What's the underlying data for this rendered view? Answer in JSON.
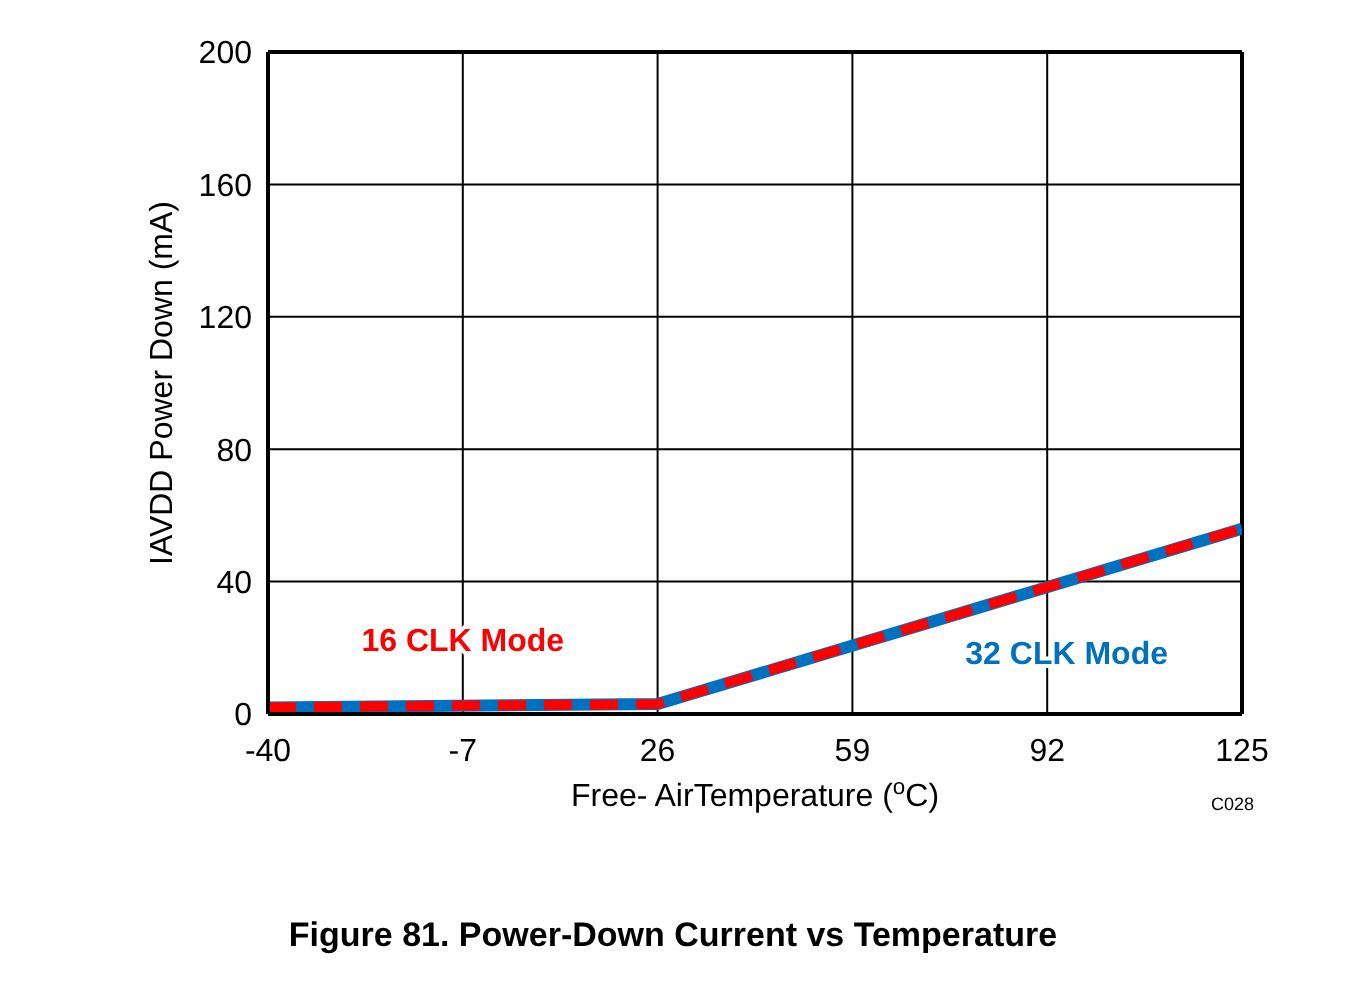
{
  "chart_data": {
    "type": "line",
    "title": "Figure 81. Power-Down Current vs Temperature",
    "xlabel": "Free- AirTemperature ($^{o}$C)",
    "ylabel": "IAVDD Power Down (mA)",
    "annotations": [
      "C028"
    ],
    "x": [
      -40,
      26,
      125
    ],
    "series": [
      {
        "name": "32 CLK Mode",
        "color": "#0070c0",
        "values": [
          2,
          3,
          56
        ],
        "line_style": "solid"
      },
      {
        "name": "16 CLK Mode",
        "color": "#ff0000",
        "values": [
          2,
          3,
          56
        ],
        "line_style": "dashed"
      }
    ],
    "xlim": [
      -40,
      125
    ],
    "xticks": [
      -40,
      -7,
      26,
      59,
      92,
      125
    ],
    "ylim": [
      0,
      200
    ],
    "yticks": [
      0,
      40,
      80,
      120,
      160,
      200
    ],
    "grid": true,
    "legend": false,
    "marker": "none"
  }
}
